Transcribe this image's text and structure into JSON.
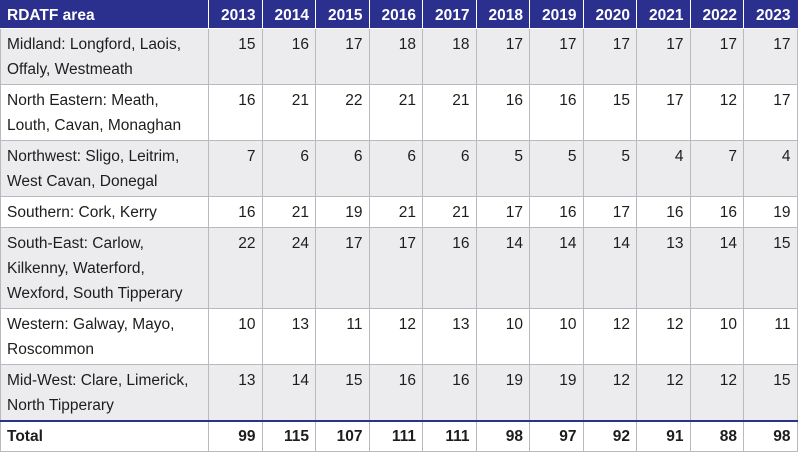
{
  "table": {
    "area_header": "RDATF area",
    "years": [
      "2013",
      "2014",
      "2015",
      "2016",
      "2017",
      "2018",
      "2019",
      "2020",
      "2021",
      "2022",
      "2023"
    ],
    "rows": [
      {
        "area": "Midland: Longford, Laois, Offaly, Westmeath",
        "values": [
          "15",
          "16",
          "17",
          "18",
          "18",
          "17",
          "17",
          "17",
          "17",
          "17",
          "17"
        ]
      },
      {
        "area": "North Eastern: Meath, Louth, Cavan, Monaghan",
        "values": [
          "16",
          "21",
          "22",
          "21",
          "21",
          "16",
          "16",
          "15",
          "17",
          "12",
          "17"
        ]
      },
      {
        "area": "Northwest: Sligo, Leitrim, West Cavan, Donegal",
        "values": [
          "7",
          "6",
          "6",
          "6",
          "6",
          "5",
          "5",
          "5",
          "4",
          "7",
          "4"
        ]
      },
      {
        "area": "Southern: Cork, Kerry",
        "values": [
          "16",
          "21",
          "19",
          "21",
          "21",
          "17",
          "16",
          "17",
          "16",
          "16",
          "19"
        ]
      },
      {
        "area": "South-East: Carlow, Kilkenny, Waterford, Wexford, South Tipperary",
        "values": [
          "22",
          "24",
          "17",
          "17",
          "16",
          "14",
          "14",
          "14",
          "13",
          "14",
          "15"
        ]
      },
      {
        "area": "Western: Galway, Mayo, Roscommon",
        "values": [
          "10",
          "13",
          "11",
          "12",
          "13",
          "10",
          "10",
          "12",
          "12",
          "10",
          "11"
        ]
      },
      {
        "area": "Mid-West: Clare, Limerick, North Tipperary",
        "values": [
          "13",
          "14",
          "15",
          "16",
          "16",
          "19",
          "19",
          "12",
          "12",
          "12",
          "15"
        ]
      }
    ],
    "total": {
      "label": "Total",
      "values": [
        "99",
        "115",
        "107",
        "111",
        "111",
        "98",
        "97",
        "92",
        "91",
        "88",
        "98"
      ]
    }
  },
  "colors": {
    "header_bg": "#2b2f8e",
    "header_text": "#ffffff",
    "stripe_bg": "#ececef",
    "grid": "#b9b9bf"
  }
}
